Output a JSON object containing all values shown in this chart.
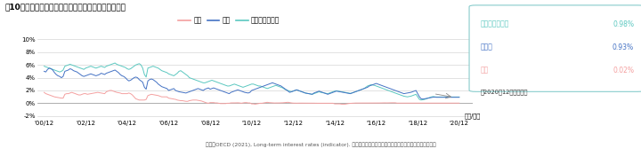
{
  "title": "【10年国債利回り（日本、米国、オーストラリア）】",
  "source_text": "出所：OECD (2021), Long-term interest rates (indicator). のデータをもとに三菱アセット・ブレインズ（株）が作成",
  "ylim": [
    -2.5,
    11.5
  ],
  "yticks": [
    -2,
    0,
    2,
    4,
    6,
    8,
    10
  ],
  "ytick_labels": [
    "-2%",
    "0%",
    "2%",
    "4%",
    "6%",
    "8%",
    "10%"
  ],
  "xtick_labels": [
    "'00/12",
    "'02/12",
    "'04/12",
    "'06/12",
    "'08/12",
    "'10/12",
    "'12/12",
    "'14/12",
    "'16/12",
    "'18/12",
    "'20/12"
  ],
  "xlabel_end": "（年/月）",
  "color_japan": "#F4A0A0",
  "color_us": "#4472C4",
  "color_australia": "#5BC8C0",
  "box_labels": [
    "オーストラリア",
    "米　国",
    "日本"
  ],
  "box_values": [
    "0.98%",
    "0.93%",
    "0.02%"
  ],
  "box_colors": [
    "#5BC8C0",
    "#4472C4",
    "#F4A0A0"
  ],
  "box_note": "（2020年12月末現在）",
  "legend_labels": [
    "日本",
    "米国",
    "オーストラリア"
  ],
  "japan_data": [
    1.7,
    1.5,
    1.4,
    1.3,
    1.2,
    1.1,
    1.0,
    0.95,
    0.9,
    0.85,
    0.8,
    0.8,
    1.4,
    1.5,
    1.5,
    1.6,
    1.7,
    1.6,
    1.5,
    1.4,
    1.3,
    1.3,
    1.4,
    1.5,
    1.5,
    1.4,
    1.45,
    1.5,
    1.55,
    1.6,
    1.65,
    1.7,
    1.65,
    1.6,
    1.55,
    1.5,
    1.8,
    1.9,
    2.0,
    2.0,
    1.9,
    1.8,
    1.7,
    1.65,
    1.6,
    1.5,
    1.5,
    1.5,
    1.5,
    1.6,
    1.5,
    1.3,
    1.0,
    0.7,
    0.6,
    0.5,
    0.5,
    0.5,
    0.5,
    0.6,
    1.2,
    1.3,
    1.4,
    1.35,
    1.3,
    1.25,
    1.2,
    1.1,
    1.0,
    1.0,
    1.0,
    1.0,
    0.8,
    0.75,
    0.7,
    0.65,
    0.6,
    0.5,
    0.45,
    0.4,
    0.4,
    0.35,
    0.3,
    0.3,
    0.4,
    0.45,
    0.5,
    0.5,
    0.5,
    0.45,
    0.4,
    0.35,
    0.25,
    0.15,
    0.05,
    0.0,
    0.1,
    0.1,
    0.1,
    0.05,
    0.05,
    0.0,
    -0.05,
    -0.05,
    -0.05,
    -0.05,
    0.0,
    0.0,
    0.05,
    0.05,
    0.05,
    0.06,
    0.07,
    0.05,
    0.0,
    0.05,
    0.1,
    0.1,
    0.05,
    0.05,
    -0.1,
    -0.1,
    -0.15,
    -0.1,
    -0.05,
    0.0,
    0.0,
    0.05,
    0.1,
    0.15,
    0.1,
    0.08,
    0.05,
    0.04,
    0.04,
    0.04,
    0.05,
    0.06,
    0.07,
    0.1,
    0.12,
    0.15,
    0.1,
    0.05,
    0.02,
    0.01,
    0.01,
    0.02,
    0.02,
    0.02,
    0.02,
    0.02,
    0.01,
    0.01,
    0.01,
    0.02,
    0.01,
    0.0,
    0.0,
    0.0,
    0.0,
    0.0,
    0.0,
    0.0,
    0.0,
    0.0,
    0.0,
    0.0,
    -0.1,
    -0.1,
    -0.1,
    -0.1,
    -0.15,
    -0.15,
    -0.15,
    -0.1,
    -0.05,
    -0.02,
    0.0,
    0.02,
    0.03,
    0.03,
    0.03,
    0.04,
    0.04,
    0.03,
    0.03,
    0.03,
    0.03,
    0.04,
    0.03,
    0.02,
    0.03,
    0.04,
    0.04,
    0.05,
    0.05,
    0.06,
    0.05,
    0.06,
    0.07,
    0.07,
    0.07,
    0.07,
    0.02,
    0.02,
    0.02,
    0.02,
    0.02,
    0.02,
    0.02,
    0.02,
    0.02,
    0.02,
    0.02,
    0.02,
    0.02,
    0.02,
    0.02,
    0.02,
    0.02,
    0.02,
    0.02,
    0.02,
    0.02,
    0.02,
    0.02,
    0.02,
    0.02,
    0.02,
    0.02,
    0.02,
    0.02,
    0.02,
    0.02,
    0.02,
    0.02,
    0.02,
    0.02,
    0.02,
    0.02,
    0.02,
    0.02,
    0.02,
    0.02,
    0.02,
    0.02,
    0.02,
    0.02,
    0.02,
    0.02,
    0.02
  ],
  "us_data": [
    5.0,
    4.9,
    5.3,
    5.5,
    5.4,
    5.2,
    4.8,
    4.5,
    4.3,
    4.2,
    4.0,
    4.2,
    5.0,
    5.1,
    5.2,
    5.4,
    5.3,
    5.1,
    5.0,
    4.9,
    4.7,
    4.5,
    4.3,
    4.2,
    4.3,
    4.4,
    4.5,
    4.6,
    4.5,
    4.4,
    4.3,
    4.4,
    4.5,
    4.7,
    4.6,
    4.5,
    4.7,
    4.8,
    4.9,
    5.0,
    5.1,
    5.2,
    5.0,
    4.8,
    4.5,
    4.3,
    4.2,
    4.0,
    3.7,
    3.5,
    3.6,
    3.8,
    4.0,
    4.1,
    4.0,
    3.7,
    3.5,
    3.3,
    2.5,
    2.2,
    3.5,
    3.7,
    3.8,
    3.7,
    3.5,
    3.3,
    3.0,
    2.8,
    2.6,
    2.5,
    2.4,
    2.3,
    2.0,
    2.1,
    2.2,
    2.3,
    2.0,
    1.9,
    1.8,
    1.75,
    1.7,
    1.65,
    1.6,
    1.7,
    1.8,
    1.9,
    2.0,
    2.1,
    2.2,
    2.3,
    2.2,
    2.1,
    2.0,
    2.2,
    2.3,
    2.4,
    2.2,
    2.3,
    2.4,
    2.3,
    2.2,
    2.1,
    2.0,
    1.9,
    1.8,
    1.7,
    1.6,
    1.5,
    1.7,
    1.8,
    1.9,
    2.0,
    2.1,
    2.0,
    1.9,
    1.8,
    1.7,
    1.65,
    1.6,
    1.7,
    2.0,
    2.1,
    2.2,
    2.3,
    2.4,
    2.5,
    2.6,
    2.7,
    2.8,
    2.9,
    3.0,
    3.1,
    3.2,
    3.1,
    3.0,
    2.9,
    2.8,
    2.7,
    2.5,
    2.3,
    2.1,
    1.9,
    1.7,
    1.8,
    1.9,
    2.0,
    2.1,
    2.0,
    1.9,
    1.8,
    1.7,
    1.6,
    1.55,
    1.5,
    1.45,
    1.4,
    1.6,
    1.7,
    1.8,
    1.9,
    1.8,
    1.7,
    1.6,
    1.5,
    1.4,
    1.5,
    1.6,
    1.7,
    1.8,
    1.9,
    1.85,
    1.8,
    1.75,
    1.7,
    1.65,
    1.6,
    1.55,
    1.5,
    1.6,
    1.7,
    1.8,
    1.9,
    2.0,
    2.1,
    2.2,
    2.3,
    2.4,
    2.5,
    2.7,
    2.8,
    2.9,
    3.0,
    3.1,
    3.0,
    2.9,
    2.8,
    2.7,
    2.6,
    2.5,
    2.4,
    2.3,
    2.2,
    2.1,
    2.0,
    1.9,
    1.8,
    1.7,
    1.6,
    1.5,
    1.55,
    1.6,
    1.65,
    1.7,
    1.8,
    1.9,
    2.0,
    1.5,
    1.0,
    0.7,
    0.65,
    0.7,
    0.75,
    0.8,
    0.85,
    0.9,
    0.95,
    0.95,
    0.93,
    0.93,
    0.93,
    0.93,
    0.93,
    0.93,
    0.93,
    0.93,
    0.93,
    0.93,
    0.93,
    0.93,
    0.93,
    0.93,
    0.93,
    0.93,
    0.93,
    0.93,
    0.93,
    0.93,
    0.93,
    0.93,
    0.93,
    0.93,
    0.93
  ],
  "aus_data": [
    5.8,
    5.7,
    5.6,
    5.5,
    5.4,
    5.3,
    5.2,
    5.1,
    5.0,
    4.9,
    5.0,
    5.2,
    5.8,
    5.9,
    6.0,
    6.1,
    6.0,
    5.9,
    5.8,
    5.7,
    5.6,
    5.5,
    5.4,
    5.3,
    5.5,
    5.6,
    5.7,
    5.8,
    5.7,
    5.6,
    5.5,
    5.6,
    5.7,
    5.8,
    5.7,
    5.6,
    5.8,
    5.9,
    6.0,
    6.1,
    6.2,
    6.3,
    6.1,
    6.0,
    5.9,
    5.8,
    5.7,
    5.6,
    5.4,
    5.3,
    5.4,
    5.6,
    5.8,
    6.0,
    6.1,
    6.2,
    6.0,
    5.5,
    4.5,
    4.1,
    5.5,
    5.6,
    5.7,
    5.8,
    5.7,
    5.6,
    5.5,
    5.3,
    5.1,
    5.0,
    4.9,
    4.8,
    4.6,
    4.5,
    4.4,
    4.3,
    4.5,
    4.7,
    5.0,
    5.1,
    4.9,
    4.7,
    4.5,
    4.3,
    4.0,
    3.9,
    3.8,
    3.7,
    3.6,
    3.5,
    3.4,
    3.3,
    3.2,
    3.2,
    3.3,
    3.4,
    3.5,
    3.6,
    3.5,
    3.4,
    3.3,
    3.2,
    3.1,
    3.0,
    2.9,
    2.8,
    2.7,
    2.7,
    2.8,
    2.9,
    3.0,
    2.9,
    2.8,
    2.7,
    2.6,
    2.5,
    2.6,
    2.7,
    2.8,
    2.9,
    3.0,
    3.0,
    2.9,
    2.8,
    2.7,
    2.7,
    2.6,
    2.5,
    2.4,
    2.3,
    2.4,
    2.5,
    2.6,
    2.7,
    2.8,
    2.7,
    2.6,
    2.5,
    2.4,
    2.2,
    2.1,
    2.0,
    1.9,
    1.8,
    1.9,
    2.0,
    2.1,
    2.0,
    1.9,
    1.8,
    1.7,
    1.6,
    1.55,
    1.5,
    1.45,
    1.4,
    1.5,
    1.6,
    1.7,
    1.8,
    1.7,
    1.65,
    1.6,
    1.55,
    1.5,
    1.6,
    1.7,
    1.8,
    1.9,
    1.95,
    1.9,
    1.85,
    1.8,
    1.75,
    1.7,
    1.65,
    1.6,
    1.55,
    1.6,
    1.7,
    1.8,
    1.9,
    2.0,
    2.1,
    2.2,
    2.3,
    2.5,
    2.7,
    2.8,
    2.9,
    2.85,
    2.8,
    2.7,
    2.6,
    2.5,
    2.4,
    2.3,
    2.2,
    2.1,
    2.0,
    1.9,
    1.8,
    1.7,
    1.6,
    1.5,
    1.4,
    1.3,
    1.2,
    1.1,
    1.05,
    1.0,
    1.05,
    1.1,
    1.2,
    1.3,
    1.4,
    1.0,
    0.6,
    0.5,
    0.55,
    0.6,
    0.7,
    0.8,
    0.9,
    1.0,
    1.05,
    1.0,
    0.98,
    0.98,
    0.98,
    0.98,
    0.98,
    0.98,
    0.98,
    0.98,
    0.98,
    0.98,
    0.98,
    0.98,
    0.98,
    0.98,
    0.98,
    0.98,
    0.98,
    0.98,
    0.98,
    0.98,
    0.98,
    0.98,
    0.98,
    0.98,
    0.98
  ]
}
